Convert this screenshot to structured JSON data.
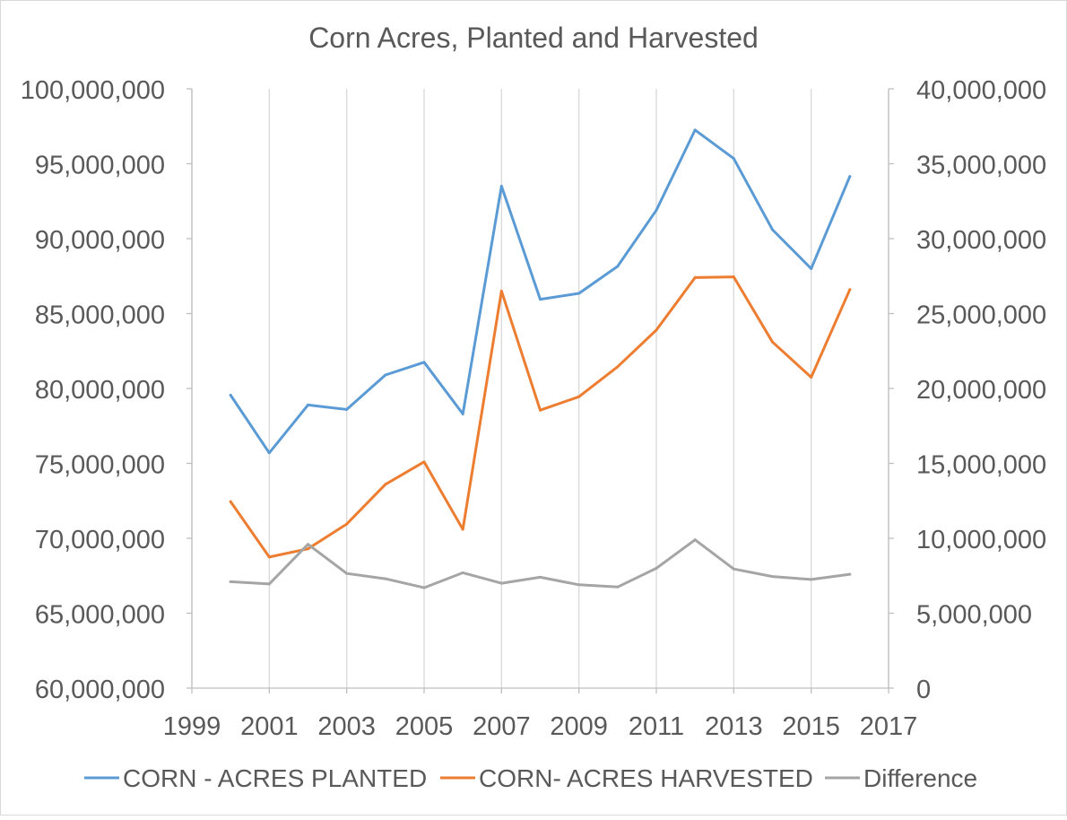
{
  "chart_data": {
    "type": "line",
    "title": "Corn Acres, Planted and Harvested",
    "xlim": [
      1999,
      2017
    ],
    "x_ticks": [
      "1999",
      "2001",
      "2003",
      "2005",
      "2007",
      "2009",
      "2011",
      "2013",
      "2015",
      "2017"
    ],
    "ylim_left": [
      60000000,
      100000000
    ],
    "y_ticks_left": [
      "60,000,000",
      "65,000,000",
      "70,000,000",
      "75,000,000",
      "80,000,000",
      "85,000,000",
      "90,000,000",
      "95,000,000",
      "100,000,000"
    ],
    "ylim_right": [
      0,
      40000000
    ],
    "y_ticks_right": [
      "0",
      "5,000,000",
      "10,000,000",
      "15,000,000",
      "20,000,000",
      "25,000,000",
      "30,000,000",
      "35,000,000",
      "40,000,000"
    ],
    "grid": "vertical",
    "legend_position": "bottom",
    "x": [
      2000,
      2001,
      2002,
      2003,
      2004,
      2005,
      2006,
      2007,
      2008,
      2009,
      2010,
      2011,
      2012,
      2013,
      2014,
      2015,
      2016
    ],
    "series": [
      {
        "name": "CORN - ACRES PLANTED",
        "axis": "left",
        "color": "#5B9BD5",
        "values": [
          79550000,
          75700000,
          78900000,
          78600000,
          80900000,
          81750000,
          78300000,
          93500000,
          85950000,
          86350000,
          88150000,
          91900000,
          97250000,
          95350000,
          90600000,
          88000000,
          94150000
        ]
      },
      {
        "name": "CORN- ACRES HARVESTED",
        "axis": "left",
        "color": "#ED7D31",
        "values": [
          72450000,
          68750000,
          69300000,
          70950000,
          73600000,
          75100000,
          70600000,
          86500000,
          78550000,
          79450000,
          81450000,
          83900000,
          87400000,
          87450000,
          83100000,
          80750000,
          86600000
        ]
      },
      {
        "name": "Difference",
        "axis": "right",
        "color": "#A5A5A5",
        "values": [
          7100000,
          6950000,
          9600000,
          7650000,
          7300000,
          6700000,
          7700000,
          7000000,
          7400000,
          6900000,
          6750000,
          8000000,
          9900000,
          7950000,
          7450000,
          7250000,
          7600000
        ]
      }
    ]
  }
}
